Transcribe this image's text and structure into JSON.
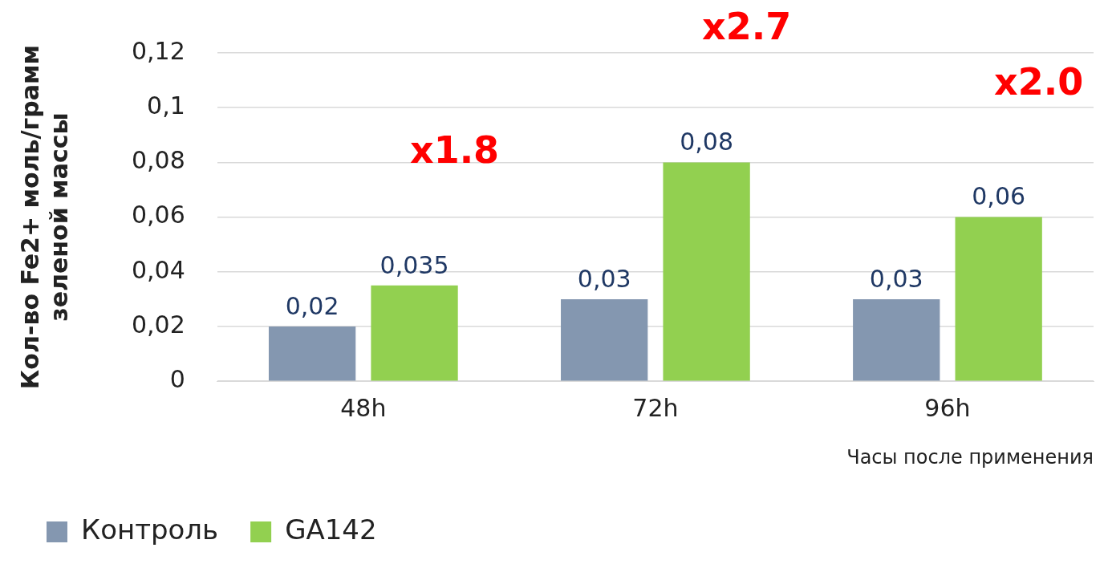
{
  "chart_data": {
    "type": "bar",
    "xlabel": "Часы после применения",
    "ylabel": "Кол-во Fe2+ моль/грамм зеленой массы",
    "categories": [
      "48h",
      "72h",
      "96h"
    ],
    "series": [
      {
        "name": "Контроль",
        "color": "#8497b0",
        "values": [
          0.02,
          0.03,
          0.03
        ],
        "value_labels": [
          "0,02",
          "0,03",
          "0,03"
        ]
      },
      {
        "name": "GA142",
        "color": "#92d050",
        "values": [
          0.035,
          0.08,
          0.06
        ],
        "value_labels": [
          "0,035",
          "0,08",
          "0,06"
        ]
      }
    ],
    "ylim": [
      0,
      0.12
    ],
    "yticks": [
      0,
      {
        "value": 0.02,
        "label": "0,02"
      },
      {
        "value": 0.04,
        "label": "0,04"
      },
      {
        "value": 0.06,
        "label": "0,06"
      },
      {
        "value": 0.08,
        "label": "0,08"
      },
      {
        "value": 0.1,
        "label": "0,1"
      },
      {
        "value": 0.12,
        "label": "0,12"
      }
    ],
    "grid": "y",
    "legend": "bottom",
    "annotations": [
      "x1.8",
      "x2.7",
      "x2.0"
    ]
  }
}
